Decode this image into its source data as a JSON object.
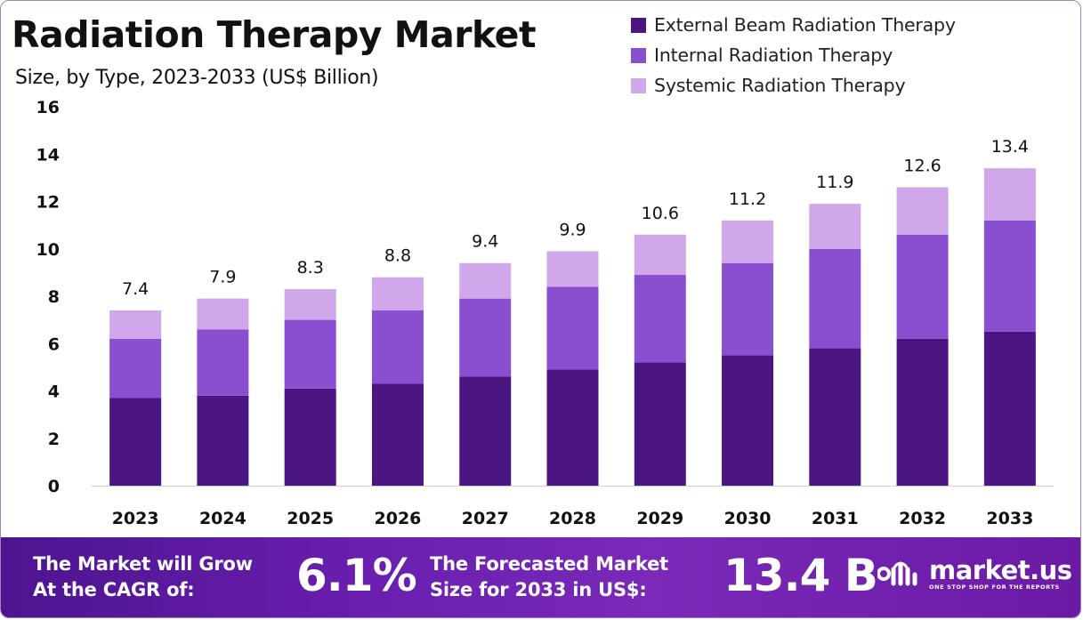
{
  "title": "Radiation Therapy Market",
  "subtitle": "Size, by Type, 2023-2033 (US$ Billion)",
  "chart_data": {
    "type": "bar",
    "stacked": true,
    "title": "Radiation Therapy Market",
    "subtitle": "Size, by Type, 2023-2033 (US$ Billion)",
    "categories": [
      "2023",
      "2024",
      "2025",
      "2026",
      "2027",
      "2028",
      "2029",
      "2030",
      "2031",
      "2032",
      "2033"
    ],
    "series": [
      {
        "name": "External Beam Radiation Therapy",
        "color": "#4b1582",
        "values": [
          3.7,
          3.8,
          4.1,
          4.3,
          4.6,
          4.9,
          5.2,
          5.5,
          5.8,
          6.2,
          6.5
        ]
      },
      {
        "name": "Internal Radiation Therapy",
        "color": "#8a4fd0",
        "values": [
          2.5,
          2.8,
          2.9,
          3.1,
          3.3,
          3.5,
          3.7,
          3.9,
          4.2,
          4.4,
          4.7
        ]
      },
      {
        "name": "Systemic Radiation Therapy",
        "color": "#cfa7ea",
        "values": [
          1.2,
          1.3,
          1.3,
          1.4,
          1.5,
          1.5,
          1.7,
          1.8,
          1.9,
          2.0,
          2.2
        ]
      }
    ],
    "totals": [
      7.4,
      7.9,
      8.3,
      8.8,
      9.4,
      9.9,
      10.6,
      11.2,
      11.9,
      12.6,
      13.4
    ],
    "total_labels": [
      "7.4",
      "7.9",
      "8.3",
      "8.8",
      "9.4",
      "9.9",
      "10.6",
      "11.2",
      "11.9",
      "12.6",
      "13.4"
    ],
    "ylim": [
      0,
      16
    ],
    "yticks": [
      0,
      2,
      4,
      6,
      8,
      10,
      12,
      14,
      16
    ],
    "xlabel": "",
    "ylabel": "",
    "grid": false,
    "legend_position": "top-right"
  },
  "banner": {
    "cagr_label_line1": "The Market will Grow",
    "cagr_label_line2": "At the CAGR of:",
    "cagr_value": "6.1%",
    "forecast_label_line1": "The Forecasted Market",
    "forecast_label_line2": "Size for 2033 in US$:",
    "forecast_value": "13.4 B"
  },
  "logo": {
    "name": "market.us",
    "tagline": "ONE STOP SHOP FOR THE REPORTS"
  }
}
